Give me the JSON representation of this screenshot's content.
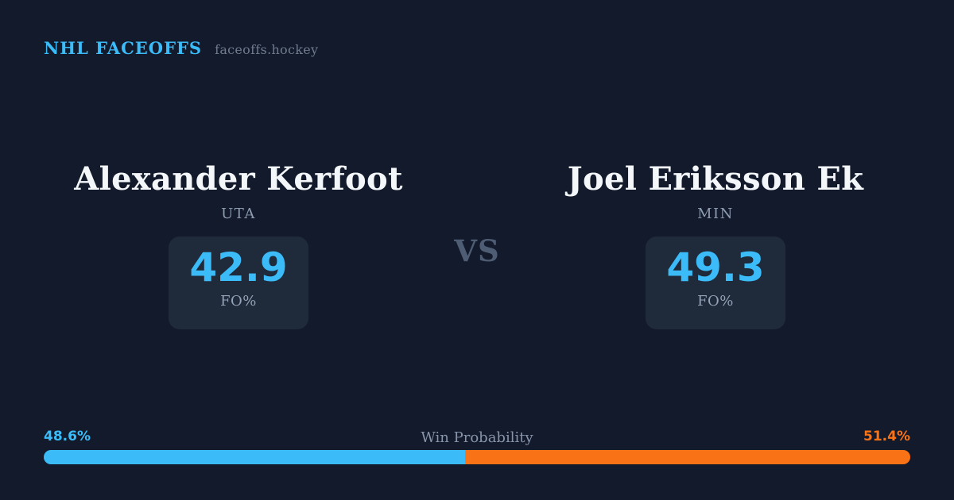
{
  "header": {
    "brand": "NHL FACEOFFS",
    "site": "faceoffs.hockey"
  },
  "matchup": {
    "vs_label": "VS",
    "players": [
      {
        "name": "Alexander Kerfoot",
        "team": "UTA",
        "stat_value": "42.9",
        "stat_label": "FO%"
      },
      {
        "name": "Joel Eriksson Ek",
        "team": "MIN",
        "stat_value": "49.3",
        "stat_label": "FO%"
      }
    ]
  },
  "win_probability": {
    "title": "Win Probability",
    "left_label": "48.6%",
    "right_label": "51.4%",
    "left_value": 48.6,
    "right_value": 51.4
  },
  "colors": {
    "background": "#121a2b",
    "card": "#1f2a3a",
    "accent_blue": "#3bbcf8",
    "accent_orange": "#f97316",
    "text_primary": "#f4f7fa",
    "text_muted": "#8e9cb2",
    "vs_text": "#4e5d74"
  }
}
